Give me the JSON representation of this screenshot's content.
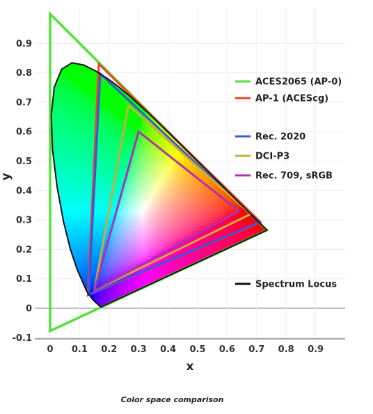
{
  "caption": "Color space comparison",
  "chart_data": {
    "type": "scatter",
    "title": "",
    "xlabel": "x",
    "ylabel": "y",
    "xlim": [
      -0.04,
      1.0
    ],
    "ylim": [
      -0.1,
      1.0
    ],
    "x_ticks": [
      "0",
      "0.1",
      "0.2",
      "0.3",
      "0.4",
      "0.5",
      "0.6",
      "0.7",
      "0.8",
      "0.9"
    ],
    "y_ticks": [
      "-0.1",
      "0",
      "0.1",
      "0.2",
      "0.3",
      "0.4",
      "0.5",
      "0.6",
      "0.7",
      "0.8",
      "0.9"
    ],
    "grid": true,
    "legend_position": "right",
    "series": [
      {
        "name": "ACES2065 (AP-0)",
        "color": "#55e03a",
        "points": [
          [
            0.7347,
            0.2653
          ],
          [
            0.0,
            1.0
          ],
          [
            0.0001,
            -0.077
          ]
        ]
      },
      {
        "name": "AP-1 (ACEScg)",
        "color": "#e8442a",
        "points": [
          [
            0.713,
            0.293
          ],
          [
            0.165,
            0.83
          ],
          [
            0.128,
            0.044
          ]
        ]
      },
      {
        "name": "Rec. 2020",
        "color": "#3f55d8",
        "points": [
          [
            0.708,
            0.292
          ],
          [
            0.17,
            0.797
          ],
          [
            0.131,
            0.046
          ]
        ]
      },
      {
        "name": "DCI-P3",
        "color": "#c8b038",
        "points": [
          [
            0.68,
            0.32
          ],
          [
            0.265,
            0.69
          ],
          [
            0.15,
            0.06
          ]
        ]
      },
      {
        "name": "Rec. 709, sRGB",
        "color": "#b030b8",
        "points": [
          [
            0.64,
            0.33
          ],
          [
            0.3,
            0.6
          ],
          [
            0.15,
            0.06
          ]
        ]
      },
      {
        "name": "Spectrum Locus",
        "color": "#111111",
        "points": [
          [
            0.1741,
            0.005
          ],
          [
            0.1738,
            0.0049
          ],
          [
            0.1733,
            0.0048
          ],
          [
            0.1726,
            0.0048
          ],
          [
            0.1714,
            0.0051
          ],
          [
            0.1689,
            0.0069
          ],
          [
            0.1644,
            0.0109
          ],
          [
            0.1566,
            0.0177
          ],
          [
            0.144,
            0.0297
          ],
          [
            0.1241,
            0.0578
          ],
          [
            0.0913,
            0.1327
          ],
          [
            0.0687,
            0.2007
          ],
          [
            0.0454,
            0.295
          ],
          [
            0.0235,
            0.4127
          ],
          [
            0.0082,
            0.5384
          ],
          [
            0.0039,
            0.6548
          ],
          [
            0.0139,
            0.7502
          ],
          [
            0.0389,
            0.812
          ],
          [
            0.0743,
            0.8338
          ],
          [
            0.1142,
            0.8262
          ],
          [
            0.1547,
            0.8059
          ],
          [
            0.1929,
            0.7816
          ],
          [
            0.2296,
            0.7543
          ],
          [
            0.2658,
            0.7243
          ],
          [
            0.3016,
            0.6923
          ],
          [
            0.3373,
            0.6589
          ],
          [
            0.3731,
            0.6245
          ],
          [
            0.4087,
            0.5896
          ],
          [
            0.4441,
            0.5547
          ],
          [
            0.4788,
            0.5202
          ],
          [
            0.5125,
            0.4866
          ],
          [
            0.5448,
            0.4544
          ],
          [
            0.5752,
            0.4242
          ],
          [
            0.6029,
            0.3965
          ],
          [
            0.627,
            0.3725
          ],
          [
            0.6482,
            0.3514
          ],
          [
            0.6658,
            0.334
          ],
          [
            0.6801,
            0.3197
          ],
          [
            0.6915,
            0.3083
          ],
          [
            0.7006,
            0.2993
          ],
          [
            0.7079,
            0.292
          ],
          [
            0.714,
            0.2859
          ],
          [
            0.719,
            0.2809
          ],
          [
            0.723,
            0.277
          ],
          [
            0.726,
            0.274
          ],
          [
            0.7283,
            0.2717
          ],
          [
            0.73,
            0.27
          ],
          [
            0.7311,
            0.2689
          ],
          [
            0.732,
            0.268
          ],
          [
            0.7327,
            0.2673
          ],
          [
            0.7334,
            0.2666
          ],
          [
            0.734,
            0.266
          ],
          [
            0.7344,
            0.2656
          ],
          [
            0.7346,
            0.2654
          ],
          [
            0.7347,
            0.2653
          ]
        ]
      }
    ]
  }
}
